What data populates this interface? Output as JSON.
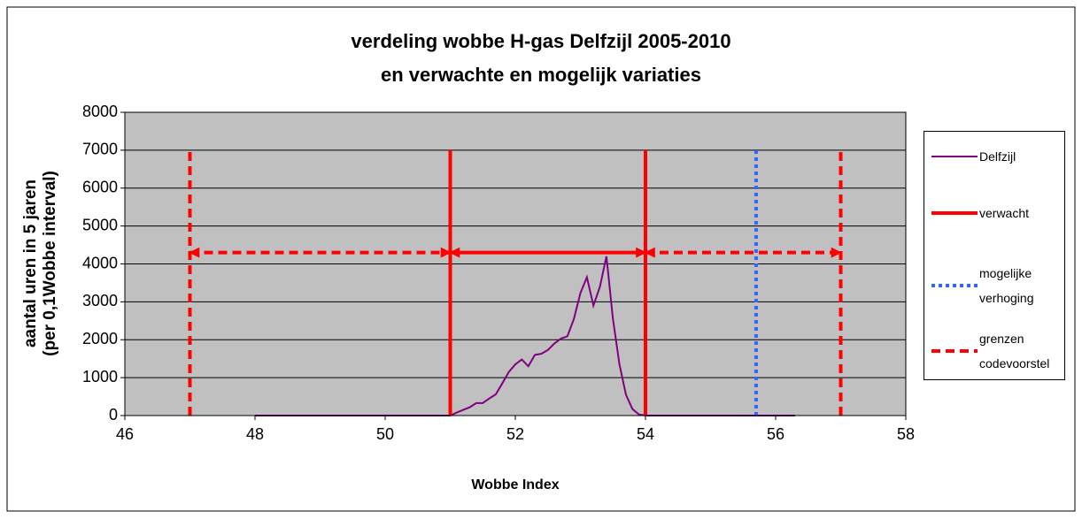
{
  "chart_data": {
    "type": "line",
    "title": [
      "verdeling wobbe H-gas Delfzijl 2005-2010",
      "en verwachte en mogelijk variaties"
    ],
    "xlabel": "Wobbe Index",
    "ylabel": [
      "aantal uren in 5 jaren",
      "(per 0,1Wobbe interval)"
    ],
    "xlim": [
      46,
      58
    ],
    "xticks": [
      46,
      48,
      50,
      52,
      54,
      56,
      58
    ],
    "ylim": [
      0,
      8000
    ],
    "yticks": [
      0,
      1000,
      2000,
      3000,
      4000,
      5000,
      6000,
      7000,
      8000
    ],
    "grid": true,
    "series": [
      {
        "name": "Delfzijl",
        "color": "#800080",
        "style": "solid",
        "width": 2,
        "x": [
          48,
          51,
          51.1,
          51.2,
          51.3,
          51.4,
          51.5,
          51.6,
          51.7,
          51.8,
          51.9,
          52,
          52.1,
          52.2,
          52.3,
          52.4,
          52.5,
          52.6,
          52.7,
          52.8,
          52.9,
          53,
          53.1,
          53.2,
          53.3,
          53.4,
          53.5,
          53.6,
          53.7,
          53.8,
          53.9,
          54,
          56.3
        ],
        "values": [
          0,
          0,
          80,
          150,
          220,
          330,
          330,
          450,
          560,
          850,
          1150,
          1350,
          1480,
          1300,
          1600,
          1630,
          1730,
          1900,
          2030,
          2090,
          2550,
          3230,
          3650,
          2900,
          3400,
          4200,
          2550,
          1350,
          550,
          170,
          30,
          0,
          0
        ]
      },
      {
        "name": "verwacht",
        "color": "#ff0000",
        "style": "solid",
        "width": 4,
        "x": [
          51,
          51,
          null,
          54,
          54,
          null,
          51,
          54
        ],
        "values": [
          0,
          7000,
          null,
          0,
          7000,
          null,
          4300,
          4300
        ]
      },
      {
        "name": "mogelijke verhoging",
        "color": "#3366ff",
        "style": "dotted",
        "width": 4,
        "x": [
          55.7,
          55.7
        ],
        "values": [
          0,
          7000
        ]
      },
      {
        "name": "grenzen codevoorstel",
        "color": "#ff0000",
        "style": "dashed",
        "width": 4,
        "x": [
          47,
          47,
          null,
          57,
          57,
          null,
          47,
          51,
          null,
          54,
          57
        ],
        "values": [
          0,
          7000,
          null,
          0,
          7000,
          null,
          4300,
          4300,
          null,
          4300,
          4300
        ]
      }
    ]
  }
}
